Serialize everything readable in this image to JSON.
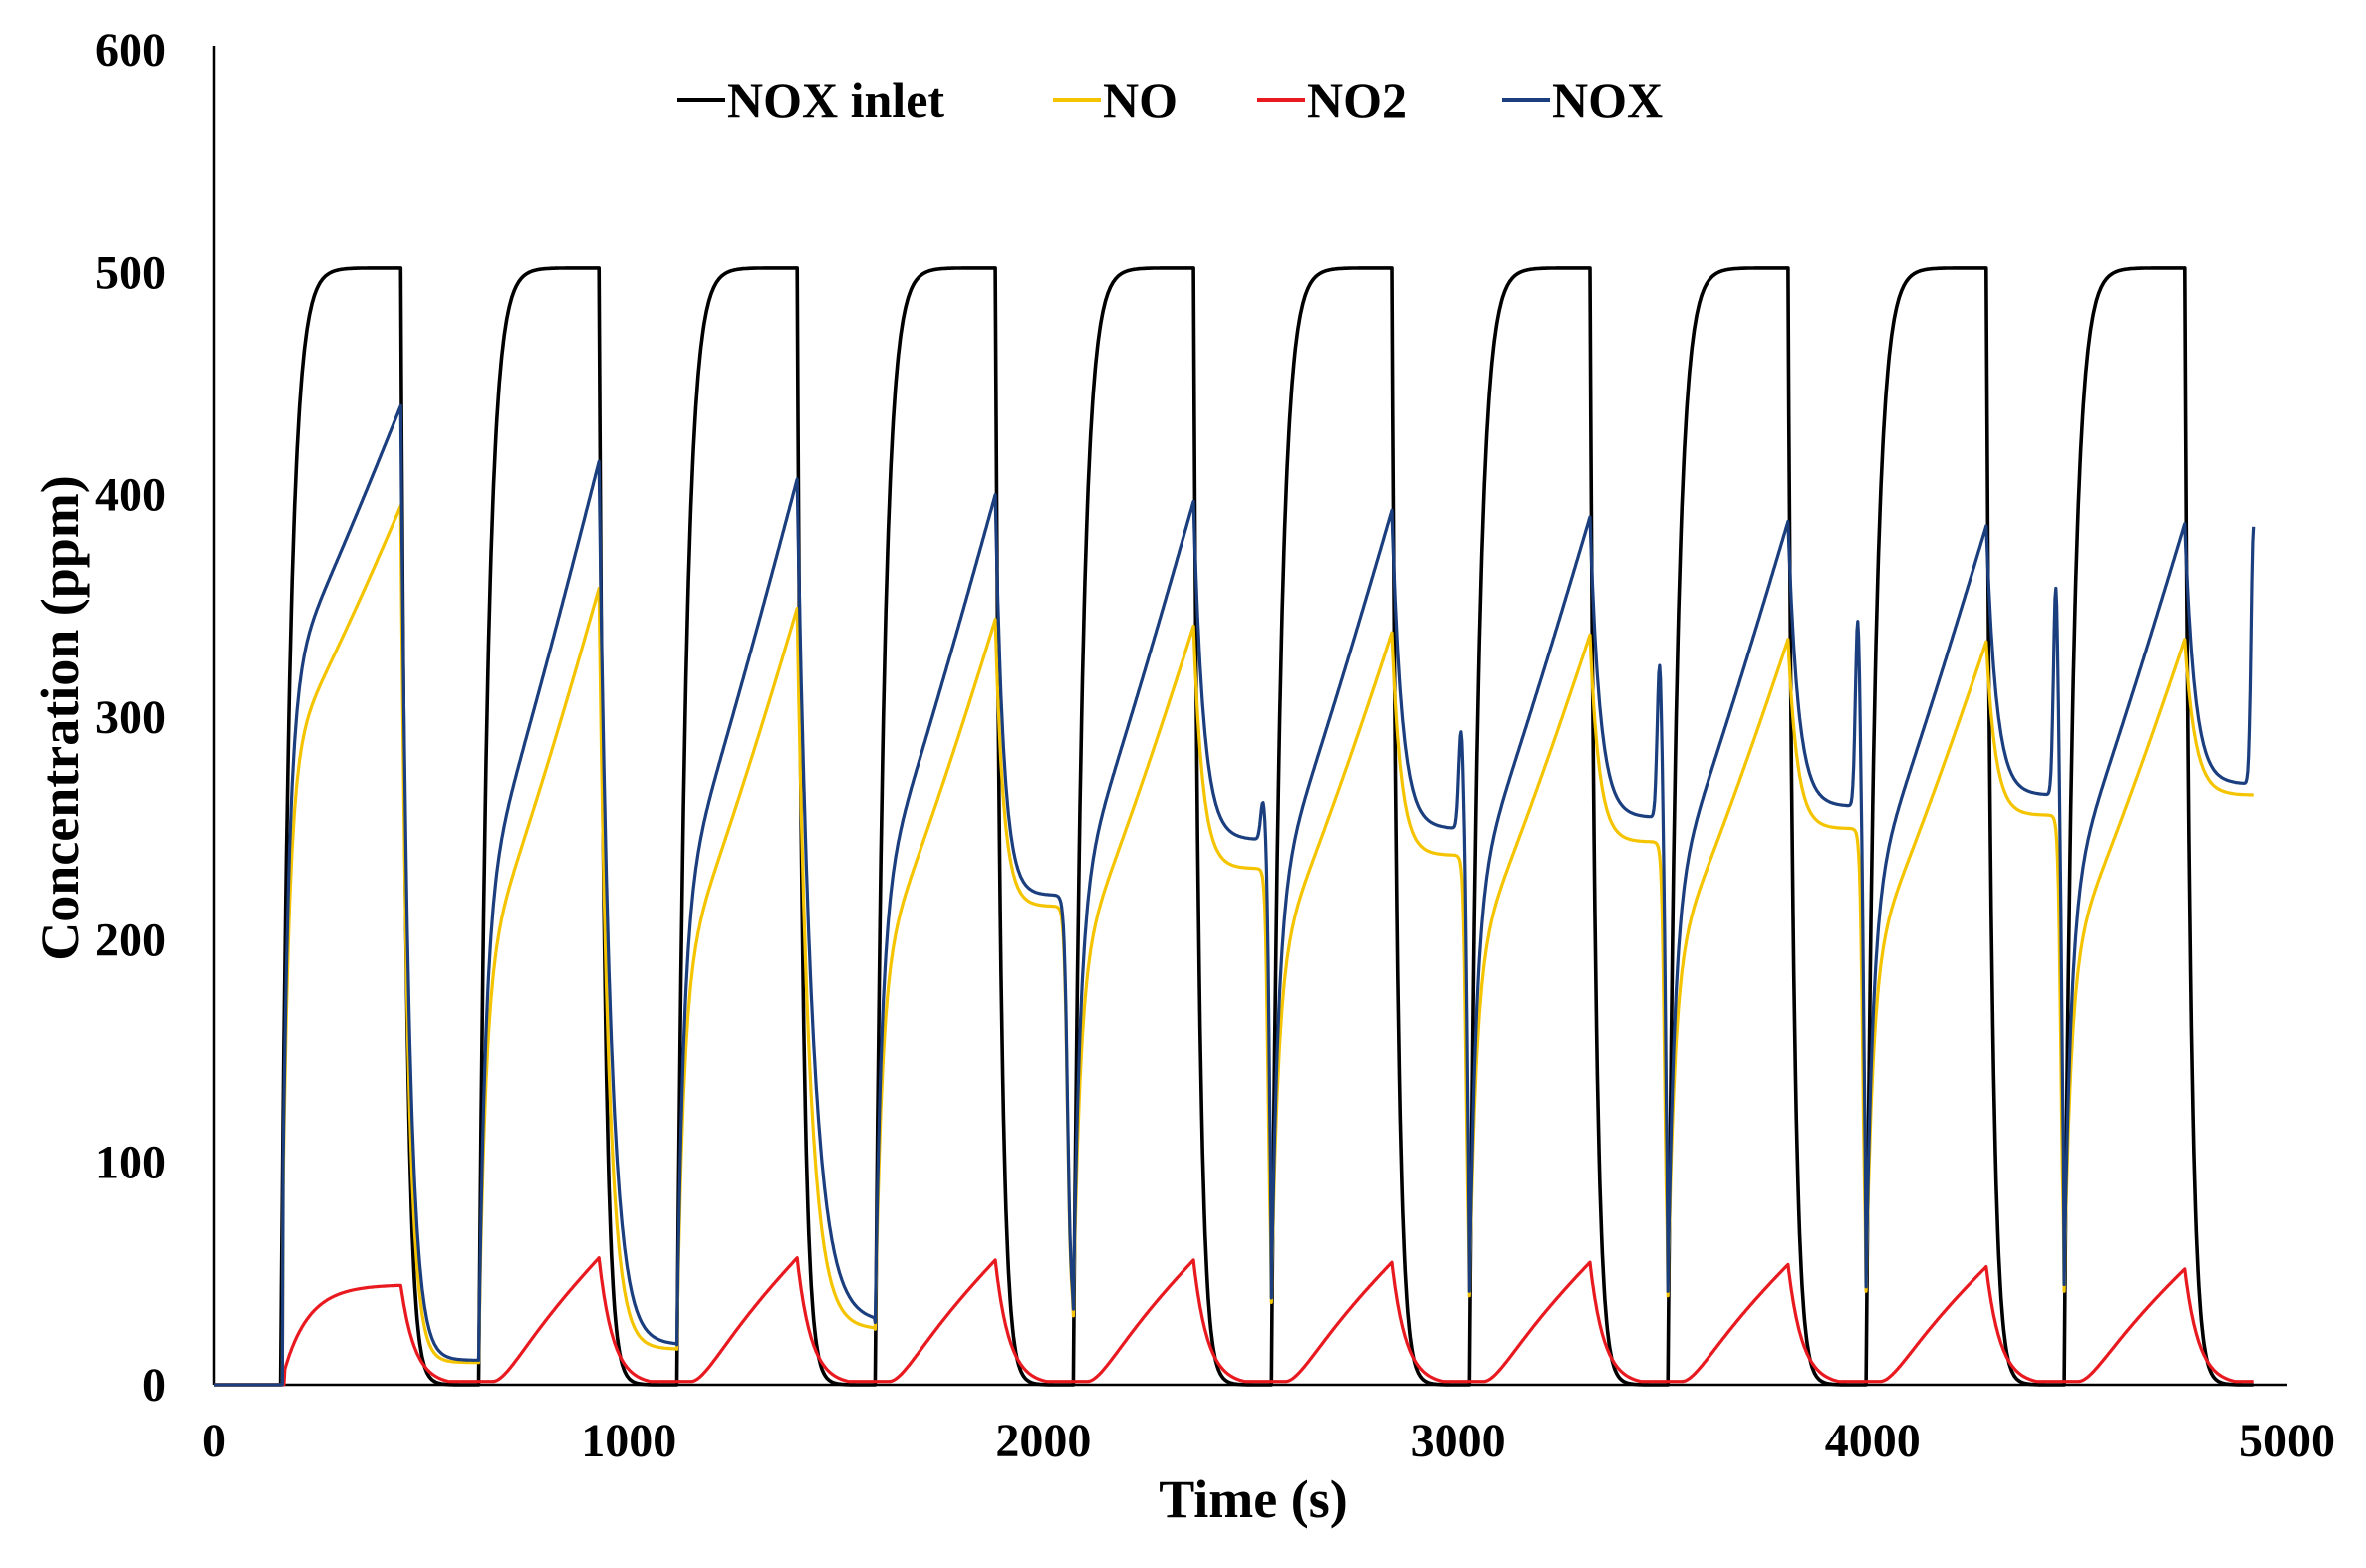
{
  "chart_data": {
    "type": "line",
    "title": "",
    "xlabel": "Time (s)",
    "ylabel": "Concentration (ppm)",
    "xlim": [
      0,
      5000
    ],
    "ylim": [
      0,
      600
    ],
    "xticks": [
      0,
      1000,
      2000,
      3000,
      4000,
      5000
    ],
    "yticks": [
      0,
      100,
      200,
      300,
      400,
      500,
      600
    ],
    "grid": false,
    "legend_position": "top",
    "cycles": {
      "start": 160,
      "period": 478,
      "lean_duration": 290,
      "count": 10,
      "end_time": 4920
    },
    "series": [
      {
        "name": "NOX inlet",
        "color": "#000000",
        "description_values": {
          "plateau": 502,
          "baseline": 0
        }
      },
      {
        "name": "NO",
        "color": "#F5C400",
        "peak_values": [
          395,
          358,
          349,
          344,
          341,
          338,
          337,
          335,
          334,
          335
        ],
        "trough_values": [
          5,
          10,
          16,
          25,
          31,
          37,
          40,
          40,
          42,
          42
        ]
      },
      {
        "name": "NO2",
        "color": "#E8191F",
        "peak_values": [
          45,
          57,
          57,
          56,
          56,
          55,
          55,
          54,
          53,
          52
        ],
        "trough_values": [
          1,
          1,
          1,
          1,
          1,
          2,
          2,
          2,
          2,
          4
        ]
      },
      {
        "name": "NOX",
        "color": "#1A3E7E",
        "peak_values": [
          440,
          415,
          407,
          400,
          397,
          393,
          390,
          388,
          386,
          387
        ],
        "trough_values": [
          5,
          11,
          18,
          28,
          34,
          39,
          42,
          42,
          44,
          45
        ]
      }
    ]
  }
}
